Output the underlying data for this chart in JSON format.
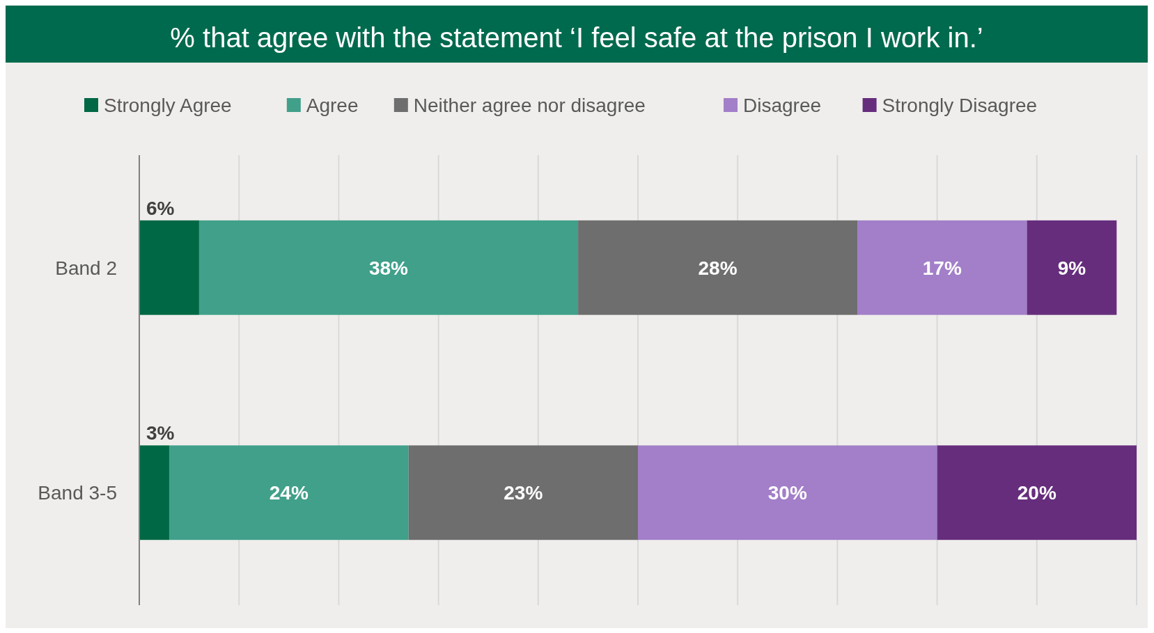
{
  "chart_data": {
    "type": "bar",
    "title": "% that agree with the statement ‘I feel safe at the prison I work in.’",
    "orientation": "horizontal",
    "stacked": true,
    "categories": [
      "Band 2",
      "Band 3-5"
    ],
    "series": [
      {
        "name": "Strongly Agree",
        "color": "#006845",
        "values": [
          6,
          3
        ],
        "value_labels": [
          "6%",
          "3%"
        ]
      },
      {
        "name": "Agree",
        "color": "#40a08a",
        "values": [
          38,
          24
        ],
        "value_labels": [
          "38%",
          "24%"
        ]
      },
      {
        "name": "Neither agree nor disagree",
        "color": "#6e6e6e",
        "values": [
          28,
          23
        ],
        "value_labels": [
          "28%",
          "23%"
        ]
      },
      {
        "name": "Disagree",
        "color": "#a27fc8",
        "values": [
          17,
          30
        ],
        "value_labels": [
          "17%",
          "30%"
        ]
      },
      {
        "name": "Strongly Disagree",
        "color": "#662d7d",
        "values": [
          9,
          20
        ],
        "value_labels": [
          "9%",
          "20%"
        ]
      }
    ],
    "tick_labels": "y",
    "grid": "x",
    "legend": "top"
  }
}
